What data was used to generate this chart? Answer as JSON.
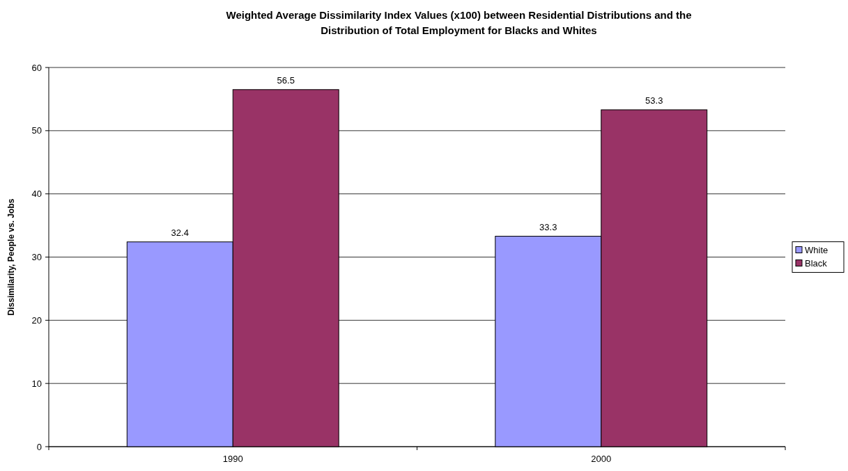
{
  "chart_data": {
    "type": "bar",
    "title": "Weighted Average Dissimilarity Index Values (x100) between Residential Distributions and the Distribution of Total Employment for Blacks and Whites",
    "ylabel": "Dissimilarity, People vs. Jobs",
    "categories": [
      "1990",
      "2000"
    ],
    "series": [
      {
        "name": "White",
        "color": "#9999ff",
        "values": [
          32.4,
          33.3
        ]
      },
      {
        "name": "Black",
        "color": "#993366",
        "values": [
          56.5,
          53.3
        ]
      }
    ],
    "ylim": [
      0,
      60
    ],
    "yticks": [
      0,
      10,
      20,
      30,
      40,
      50,
      60
    ],
    "grid": "y",
    "legend": "right",
    "data_labels": true
  }
}
